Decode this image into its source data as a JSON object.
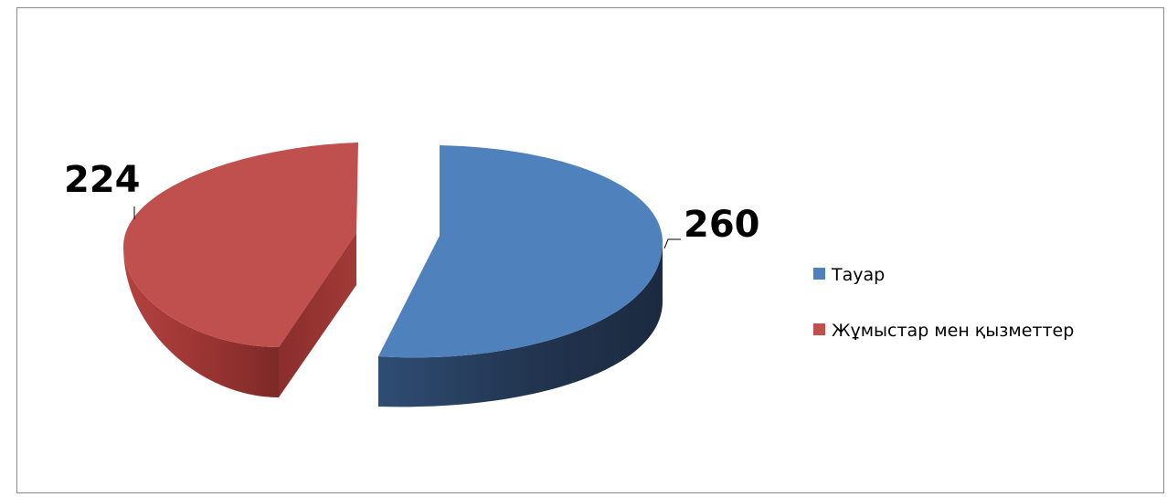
{
  "chart_data": {
    "type": "pie",
    "style": "3d-exploded",
    "categories": [
      "Тауар",
      "Жұмыстар мен қызметтер"
    ],
    "values": [
      260,
      224
    ],
    "colors": [
      "#4f81bd",
      "#c0504d"
    ],
    "data_labels": [
      "260",
      "224"
    ],
    "legend_position": "right",
    "title": ""
  }
}
